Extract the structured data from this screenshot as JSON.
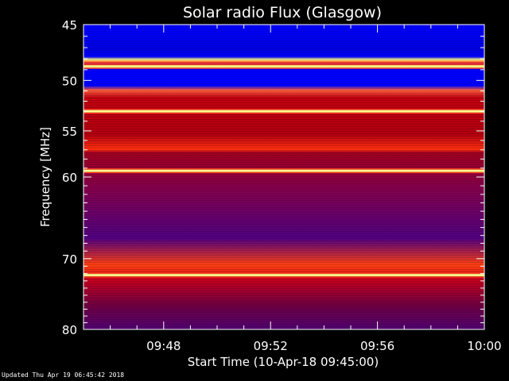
{
  "chart_data": {
    "type": "heatmap",
    "title": "Solar radio Flux (Glasgow)",
    "ylabel": "Frequency [MHz]",
    "xlabel": "Start Time (10-Apr-18 09:45:00)",
    "x_range": [
      "09:45",
      "10:00"
    ],
    "y_range": [
      45,
      80
    ],
    "y_ticks": [
      45,
      50,
      55,
      60,
      70,
      80
    ],
    "y_tick_labels": [
      "45",
      "50",
      "55",
      "60",
      "70",
      "80"
    ],
    "x_ticks": [
      "09:48",
      "09:52",
      "09:56",
      "10:00"
    ],
    "y_axis": "log",
    "notable_bands_mhz": [
      {
        "freq": 48.7,
        "level": "high"
      },
      {
        "freq": 53.0,
        "level": "high"
      },
      {
        "freq": 59.3,
        "level": "high"
      },
      {
        "freq": 72.2,
        "level": "high"
      }
    ],
    "colormap": [
      "#000080",
      "#0000ff",
      "#ff0000",
      "#ffff80"
    ]
  },
  "footer": {
    "updated": "Updated Thu Apr 19 06:45:42 2018"
  }
}
